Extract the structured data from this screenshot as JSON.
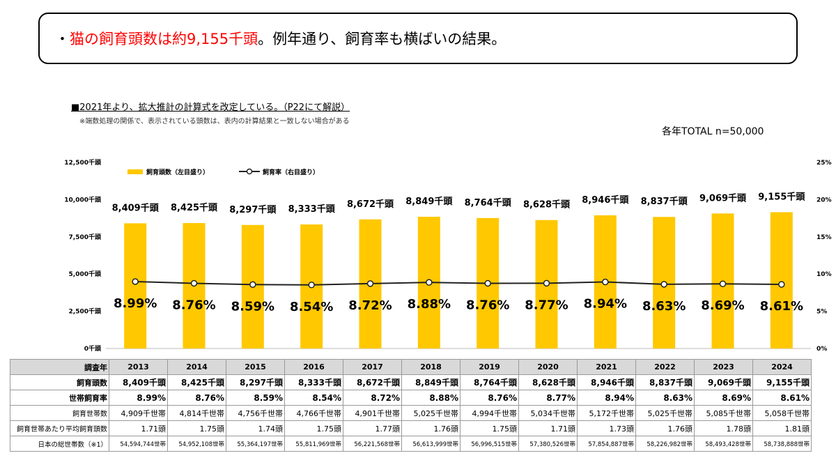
{
  "headline": {
    "bullet": "・",
    "highlight": "猫の飼育頭数は約9,155千頭",
    "rest": "。例年通り、飼育率も横ばいの結果。"
  },
  "notes": {
    "main": "■2021年より、拡大推計の計算式を改定している。（P22にて解説）",
    "sub": "※端数処理の関係で、表示されている頭数は、表内の計算結果と一致しない場合がある"
  },
  "sample_label": "各年TOTAL n=50,000",
  "colors": {
    "bar": "#ffc800",
    "line": "#222222",
    "marker_fill": "#ffffff"
  },
  "chart_data": {
    "type": "bar+line",
    "categories": [
      "2013",
      "2014",
      "2015",
      "2016",
      "2017",
      "2018",
      "2019",
      "2020",
      "2021",
      "2022",
      "2023",
      "2024"
    ],
    "series": [
      {
        "name": "飼育頭数（左目盛り）",
        "type": "bar",
        "axis": "left",
        "values": [
          8409,
          8425,
          8297,
          8333,
          8672,
          8849,
          8764,
          8628,
          8946,
          8837,
          9069,
          9155
        ],
        "labels": [
          "8,409千頭",
          "8,425千頭",
          "8,297千頭",
          "8,333千頭",
          "8,672千頭",
          "8,849千頭",
          "8,764千頭",
          "8,628千頭",
          "8,946千頭",
          "8,837千頭",
          "9,069千頭",
          "9,155千頭"
        ]
      },
      {
        "name": "飼育率（右目盛り）",
        "type": "line",
        "axis": "right",
        "values": [
          8.99,
          8.76,
          8.59,
          8.54,
          8.72,
          8.88,
          8.76,
          8.77,
          8.94,
          8.63,
          8.69,
          8.61
        ],
        "labels": [
          "8.99%",
          "8.76%",
          "8.59%",
          "8.54%",
          "8.72%",
          "8.88%",
          "8.76%",
          "8.77%",
          "8.94%",
          "8.63%",
          "8.69%",
          "8.61%"
        ]
      }
    ],
    "left_axis": {
      "min": 0,
      "max": 12500,
      "ticks": [
        "0千頭",
        "2,500千頭",
        "5,000千頭",
        "7,500千頭",
        "10,000千頭",
        "12,500千頭"
      ]
    },
    "right_axis": {
      "min": 0,
      "max": 25,
      "ticks": [
        "0%",
        "5%",
        "10%",
        "15%",
        "20%",
        "25%"
      ]
    },
    "legend": [
      "飼育頭数（左目盛り）",
      "飼育率（右目盛り）"
    ],
    "legend_position": "top-left"
  },
  "table": {
    "rows": [
      {
        "label": "調査年",
        "style": "yr",
        "cells": [
          "2013",
          "2014",
          "2015",
          "2016",
          "2017",
          "2018",
          "2019",
          "2020",
          "2021",
          "2022",
          "2023",
          "2024"
        ]
      },
      {
        "label": "飼育頭数",
        "style": "bold",
        "cells": [
          "8,409千頭",
          "8,425千頭",
          "8,297千頭",
          "8,333千頭",
          "8,672千頭",
          "8,849千頭",
          "8,764千頭",
          "8,628千頭",
          "8,946千頭",
          "8,837千頭",
          "9,069千頭",
          "9,155千頭"
        ]
      },
      {
        "label": "世帯飼育率",
        "style": "bold",
        "cells": [
          "8.99%",
          "8.76%",
          "8.59%",
          "8.54%",
          "8.72%",
          "8.88%",
          "8.76%",
          "8.77%",
          "8.94%",
          "8.63%",
          "8.69%",
          "8.61%"
        ]
      },
      {
        "label": "飼育世帯数",
        "style": "normal",
        "cells": [
          "4,909千世帯",
          "4,814千世帯",
          "4,756千世帯",
          "4,766千世帯",
          "4,901千世帯",
          "5,025千世帯",
          "4,994千世帯",
          "5,034千世帯",
          "5,172千世帯",
          "5,025千世帯",
          "5,085千世帯",
          "5,058千世帯"
        ]
      },
      {
        "label": "飼育世帯あたり平均飼育頭数",
        "style": "normal",
        "cells": [
          "1.71頭",
          "1.75頭",
          "1.74頭",
          "1.75頭",
          "1.77頭",
          "1.76頭",
          "1.75頭",
          "1.71頭",
          "1.73頭",
          "1.76頭",
          "1.78頭",
          "1.81頭"
        ]
      },
      {
        "label": "日本の総世帯数（※1）",
        "style": "small",
        "cells": [
          "54,594,744世帯",
          "54,952,108世帯",
          "55,364,197世帯",
          "55,811,969世帯",
          "56,221,568世帯",
          "56,613,999世帯",
          "56,996,515世帯",
          "57,380,526世帯",
          "57,854,887世帯",
          "58,226,982世帯",
          "58,493,428世帯",
          "58,738,888世帯"
        ]
      }
    ]
  }
}
